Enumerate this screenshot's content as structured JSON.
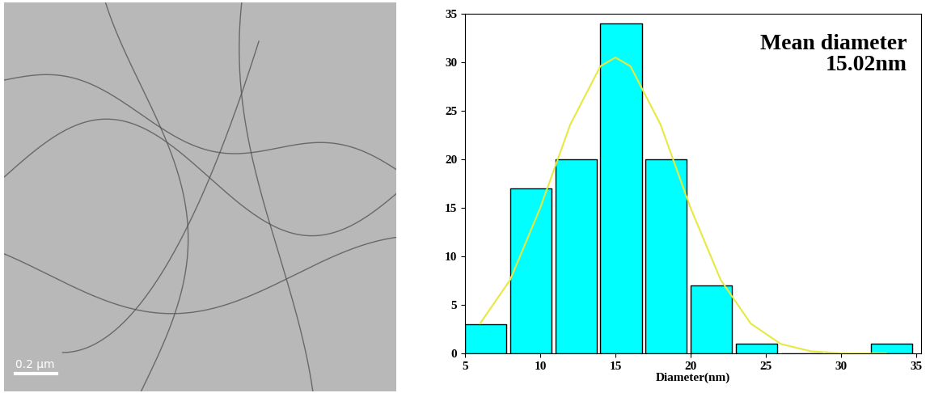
{
  "image": {
    "type": "micrograph",
    "scale_bar": "0.2 μm"
  },
  "chart_data": {
    "type": "histogram",
    "bins": [
      5,
      8,
      11,
      14,
      17,
      20,
      23,
      26,
      29,
      32,
      35
    ],
    "counts": [
      3,
      17,
      20,
      34,
      20,
      7,
      1,
      0,
      0,
      1
    ],
    "color": "#00ffff",
    "xlabel": "Diameter(nm)",
    "annotation": "Mean diameter\n15.02nm",
    "fit": {
      "type": "line",
      "color": "#e8e840",
      "x": [
        6,
        8,
        10,
        12,
        14,
        15,
        16,
        18,
        20,
        22,
        24,
        26,
        28,
        30,
        33
      ],
      "values": [
        3.1,
        7.6,
        15,
        23.6,
        29.6,
        30.5,
        29.6,
        23.6,
        15,
        7.6,
        3.1,
        1.0,
        0.25,
        0.05,
        0
      ]
    },
    "xlim": [
      5,
      35.3
    ],
    "xticks": [
      5,
      10,
      15,
      20,
      25,
      30,
      35
    ],
    "ylim": [
      0,
      35
    ],
    "yticks": [
      0,
      5,
      10,
      15,
      20,
      25,
      30,
      35
    ],
    "grid": false
  }
}
